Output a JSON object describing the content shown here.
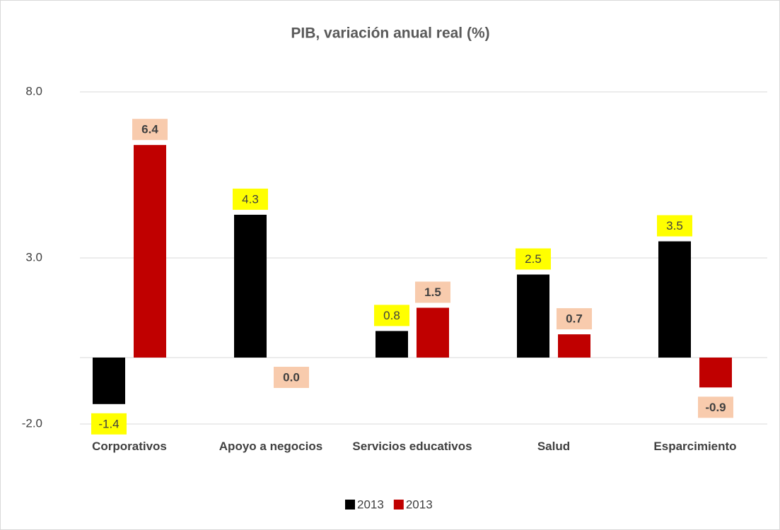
{
  "chart_data": {
    "type": "bar",
    "title": "PIB, variación anual real (%)",
    "categories": [
      "Corporativos",
      "Apoyo a negocios",
      "Servicios educativos",
      "Salud",
      "Esparcimiento"
    ],
    "series": [
      {
        "name": "2013",
        "color": "#000000",
        "label_background": "#ffff00",
        "label_bold": false,
        "values": [
          -1.4,
          4.3,
          0.8,
          2.5,
          3.5
        ],
        "value_labels": [
          "-1.4",
          "4.3",
          "0.8",
          "2.5",
          "3.5"
        ]
      },
      {
        "name": "2013",
        "color": "#c00000",
        "label_background": "#f8cbad",
        "label_bold": true,
        "values": [
          6.4,
          0.0,
          1.5,
          0.7,
          -0.9
        ],
        "value_labels": [
          "6.4",
          "0.0",
          "1.5",
          "0.7",
          "-0.9"
        ]
      }
    ],
    "ylim": [
      -2,
      8
    ],
    "yticks": [
      {
        "value": -2,
        "label": "-2.0"
      },
      {
        "value": 3,
        "label": "3.0"
      },
      {
        "value": 8,
        "label": "8.0"
      }
    ],
    "grid": true
  }
}
